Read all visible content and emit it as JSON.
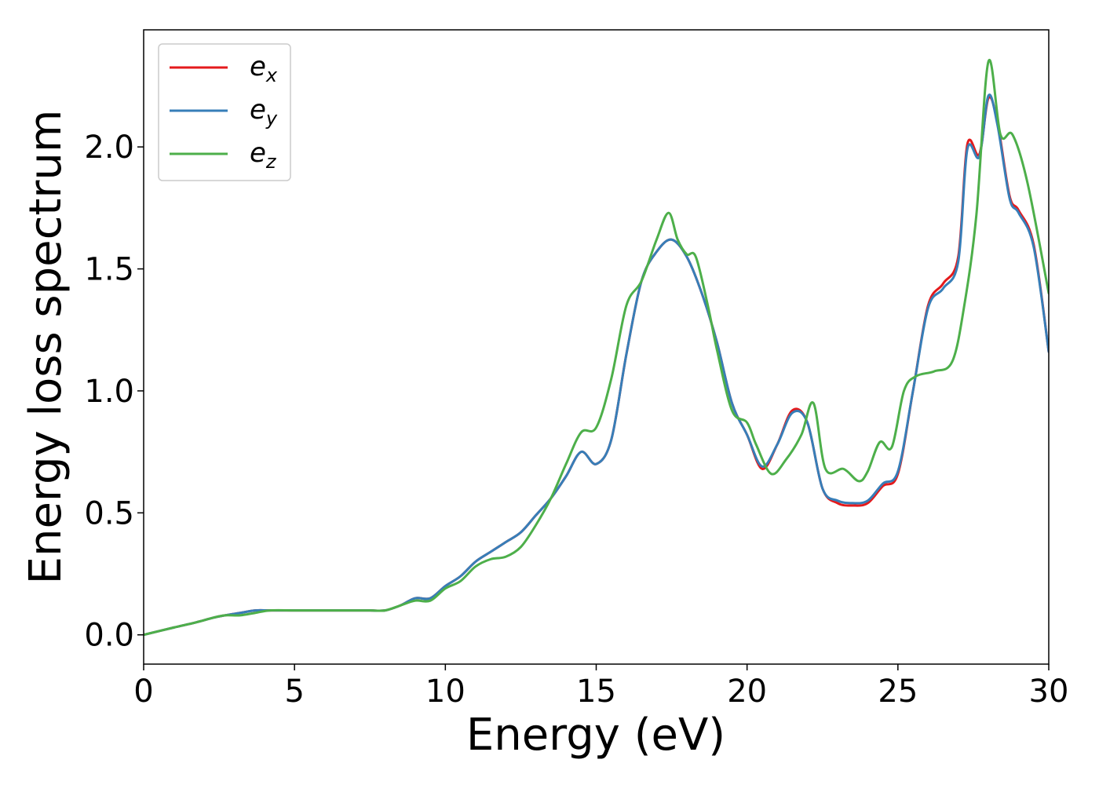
{
  "chart_data": {
    "type": "line",
    "title": "",
    "xlabel": "Energy (eV)",
    "ylabel": "Energy loss spectrum",
    "xlim": [
      0,
      30
    ],
    "ylim": [
      -0.12,
      2.48
    ],
    "xticks": [
      0,
      5,
      10,
      15,
      20,
      25,
      30
    ],
    "xtick_labels": [
      "0",
      "5",
      "10",
      "15",
      "20",
      "25",
      "30"
    ],
    "yticks": [
      0.0,
      0.5,
      1.0,
      1.5,
      2.0
    ],
    "ytick_labels": [
      "0.0",
      "0.5",
      "1.0",
      "1.5",
      "2.0"
    ],
    "grid": false,
    "legend_position": "upper-left",
    "series": [
      {
        "name": "e_x",
        "legend_base": "e",
        "legend_sub": "x",
        "color": "#e41a1c",
        "x": [
          0,
          1,
          1.7,
          2.3,
          2.7,
          3.2,
          3.7,
          4.2,
          5,
          5.7,
          6.3,
          7,
          7.5,
          8,
          8.5,
          9,
          9.5,
          10,
          10.5,
          11,
          11.5,
          12,
          12.5,
          13,
          13.5,
          14,
          14.5,
          15,
          15.5,
          16,
          16.5,
          17,
          17.5,
          18,
          18.5,
          19,
          19.5,
          20,
          20.5,
          21,
          21.5,
          22,
          22.5,
          23,
          23.5,
          24,
          24.5,
          25,
          25.5,
          26,
          26.5,
          27,
          27.3,
          27.7,
          28,
          28.3,
          28.7,
          29,
          29.5,
          30
        ],
        "y": [
          0.0,
          0.03,
          0.05,
          0.07,
          0.08,
          0.09,
          0.1,
          0.1,
          0.1,
          0.1,
          0.1,
          0.1,
          0.1,
          0.1,
          0.12,
          0.15,
          0.15,
          0.2,
          0.24,
          0.3,
          0.34,
          0.38,
          0.42,
          0.49,
          0.56,
          0.65,
          0.75,
          0.7,
          0.8,
          1.15,
          1.45,
          1.57,
          1.62,
          1.55,
          1.4,
          1.2,
          0.95,
          0.82,
          0.68,
          0.78,
          0.92,
          0.87,
          0.6,
          0.54,
          0.53,
          0.54,
          0.61,
          0.66,
          1.0,
          1.35,
          1.44,
          1.55,
          2.01,
          1.97,
          2.2,
          2.1,
          1.8,
          1.74,
          1.6,
          1.16
        ]
      },
      {
        "name": "e_y",
        "legend_base": "e",
        "legend_sub": "y",
        "color": "#377eb8",
        "x": [
          0,
          1,
          1.7,
          2.3,
          2.7,
          3.2,
          3.7,
          4.2,
          5,
          5.7,
          6.3,
          7,
          7.5,
          8,
          8.5,
          9,
          9.5,
          10,
          10.5,
          11,
          11.5,
          12,
          12.5,
          13,
          13.5,
          14,
          14.5,
          15,
          15.5,
          16,
          16.5,
          17,
          17.5,
          18,
          18.5,
          19,
          19.5,
          20,
          20.5,
          21,
          21.5,
          22,
          22.5,
          23,
          23.5,
          24,
          24.5,
          25,
          25.5,
          26,
          26.5,
          27,
          27.3,
          27.7,
          28,
          28.3,
          28.7,
          29,
          29.5,
          30
        ],
        "y": [
          0.0,
          0.03,
          0.05,
          0.07,
          0.08,
          0.09,
          0.1,
          0.1,
          0.1,
          0.1,
          0.1,
          0.1,
          0.1,
          0.1,
          0.12,
          0.15,
          0.15,
          0.2,
          0.24,
          0.3,
          0.34,
          0.38,
          0.42,
          0.49,
          0.56,
          0.65,
          0.75,
          0.7,
          0.8,
          1.15,
          1.45,
          1.57,
          1.62,
          1.55,
          1.4,
          1.2,
          0.95,
          0.82,
          0.69,
          0.78,
          0.91,
          0.87,
          0.6,
          0.55,
          0.54,
          0.55,
          0.62,
          0.67,
          1.0,
          1.34,
          1.42,
          1.53,
          1.99,
          1.96,
          2.21,
          2.09,
          1.79,
          1.73,
          1.59,
          1.16
        ]
      },
      {
        "name": "e_z",
        "legend_base": "e",
        "legend_sub": "z",
        "color": "#4daf4a",
        "x": [
          0,
          1,
          1.7,
          2.3,
          2.7,
          3.2,
          3.7,
          4.2,
          5,
          5.7,
          6.3,
          7,
          7.5,
          8,
          8.5,
          9,
          9.5,
          10,
          10.5,
          11,
          11.5,
          12,
          12.5,
          13,
          13.5,
          14,
          14.5,
          15,
          15.5,
          16,
          16.5,
          17,
          17.4,
          17.7,
          18,
          18.3,
          18.7,
          19,
          19.5,
          20,
          20.3,
          20.8,
          21.3,
          21.8,
          22.2,
          22.6,
          23.2,
          23.7,
          24.0,
          24.4,
          24.8,
          25.2,
          25.6,
          26.2,
          26.8,
          27.2,
          27.6,
          28.0,
          28.4,
          28.8,
          29.3,
          30
        ],
        "y": [
          0.0,
          0.03,
          0.05,
          0.07,
          0.08,
          0.08,
          0.09,
          0.1,
          0.1,
          0.1,
          0.1,
          0.1,
          0.1,
          0.1,
          0.12,
          0.14,
          0.14,
          0.19,
          0.22,
          0.28,
          0.31,
          0.32,
          0.36,
          0.45,
          0.56,
          0.7,
          0.83,
          0.85,
          1.05,
          1.35,
          1.45,
          1.62,
          1.73,
          1.62,
          1.56,
          1.55,
          1.35,
          1.17,
          0.92,
          0.87,
          0.78,
          0.66,
          0.72,
          0.82,
          0.95,
          0.68,
          0.68,
          0.63,
          0.67,
          0.79,
          0.77,
          1.0,
          1.06,
          1.08,
          1.12,
          1.35,
          1.72,
          2.35,
          2.05,
          2.05,
          1.85,
          1.4
        ]
      }
    ]
  }
}
